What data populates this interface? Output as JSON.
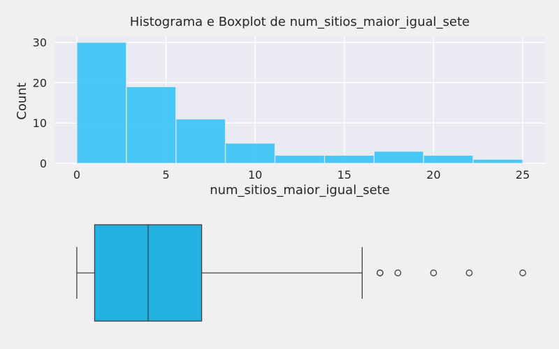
{
  "chart_data": [
    {
      "type": "histogram",
      "title": "Histograma e Boxplot de num_sitios_maior_igual_sete",
      "xlabel": "num_sitios_maior_igual_sete",
      "ylabel": "Count",
      "xlim": [
        -1.25,
        26.25
      ],
      "ylim": [
        0,
        31.5
      ],
      "x_ticks": [
        0,
        5,
        10,
        15,
        20,
        25
      ],
      "y_ticks": [
        0,
        10,
        20,
        30
      ],
      "bin_edges": [
        0,
        2.78,
        5.56,
        8.33,
        11.11,
        13.89,
        16.67,
        19.44,
        22.22,
        25
      ],
      "counts": [
        30,
        19,
        11,
        5,
        2,
        2,
        3,
        2,
        1
      ],
      "color": "#3ec6f7",
      "grid": true
    },
    {
      "type": "boxplot",
      "xlim": [
        -1.25,
        26.25
      ],
      "min": 0,
      "q1": 1,
      "median": 4,
      "q3": 7,
      "max": 16,
      "outliers": [
        17,
        17,
        18,
        20,
        22,
        25
      ],
      "color": "#22b1e0"
    }
  ]
}
